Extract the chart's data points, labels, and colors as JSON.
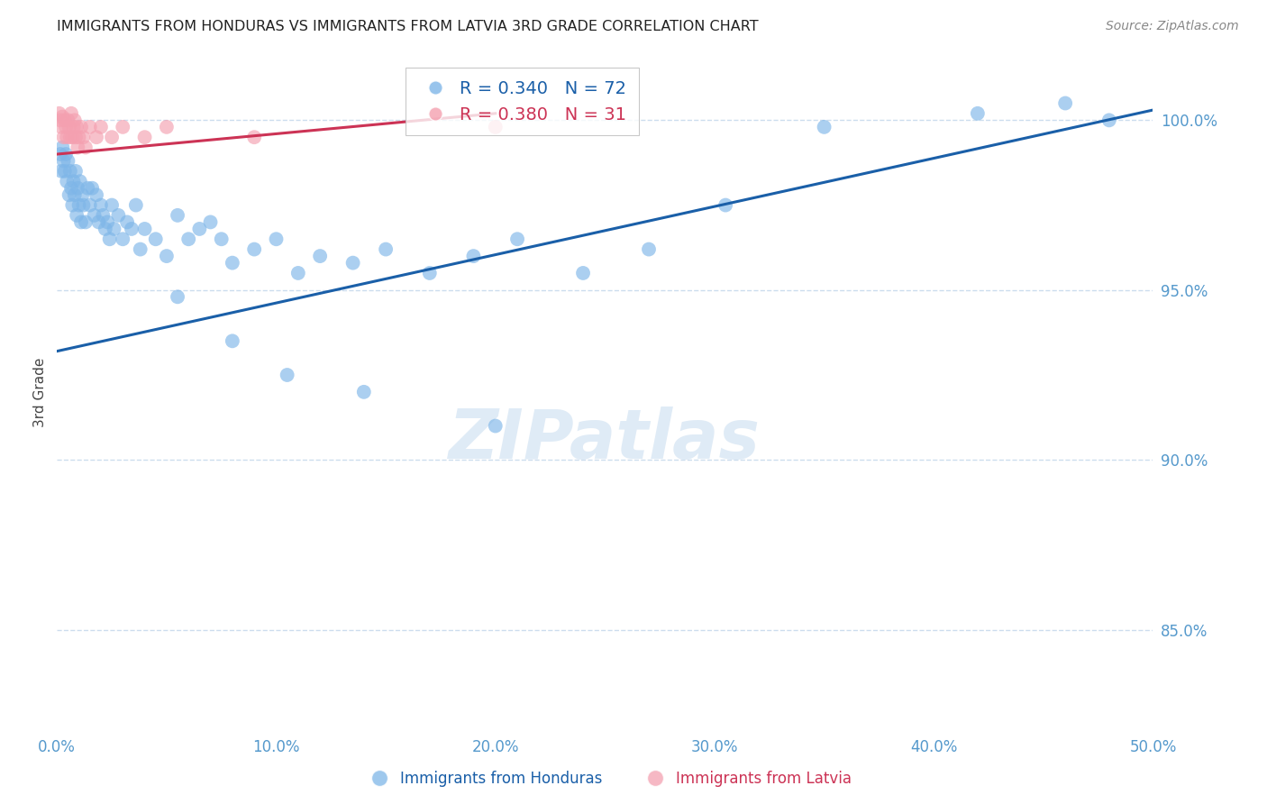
{
  "title": "IMMIGRANTS FROM HONDURAS VS IMMIGRANTS FROM LATVIA 3RD GRADE CORRELATION CHART",
  "source": "Source: ZipAtlas.com",
  "ylabel": "3rd Grade",
  "legend_label_blue": "Immigrants from Honduras",
  "legend_label_pink": "Immigrants from Latvia",
  "R_blue": 0.34,
  "N_blue": 72,
  "R_pink": 0.38,
  "N_pink": 31,
  "x_min": 0.0,
  "x_max": 50.0,
  "y_min": 82.0,
  "y_max": 102.0,
  "yticks": [
    85.0,
    90.0,
    95.0,
    100.0
  ],
  "xticks": [
    0.0,
    10.0,
    20.0,
    30.0,
    40.0,
    50.0
  ],
  "blue_color": "#7EB6E8",
  "pink_color": "#F4A0B0",
  "blue_line_color": "#1A5FA8",
  "pink_line_color": "#CC3355",
  "tick_color": "#5599CC",
  "grid_color": "#CCDDEE",
  "Honduras_x": [
    0.15,
    0.2,
    0.25,
    0.3,
    0.35,
    0.4,
    0.45,
    0.5,
    0.55,
    0.6,
    0.65,
    0.7,
    0.75,
    0.8,
    0.85,
    0.9,
    0.95,
    1.0,
    1.05,
    1.1,
    1.15,
    1.2,
    1.3,
    1.4,
    1.5,
    1.6,
    1.7,
    1.8,
    1.9,
    2.0,
    2.1,
    2.2,
    2.3,
    2.4,
    2.5,
    2.6,
    2.8,
    3.0,
    3.2,
    3.4,
    3.6,
    3.8,
    4.0,
    4.5,
    5.0,
    5.5,
    6.0,
    6.5,
    7.0,
    7.5,
    8.0,
    9.0,
    10.0,
    11.0,
    12.0,
    13.5,
    15.0,
    17.0,
    19.0,
    21.0,
    24.0,
    27.0,
    30.5,
    35.0,
    42.0,
    46.0,
    48.0,
    5.5,
    8.0,
    10.5,
    14.0,
    20.0
  ],
  "Honduras_y": [
    99.0,
    98.5,
    99.2,
    98.8,
    98.5,
    99.0,
    98.2,
    98.8,
    97.8,
    98.5,
    98.0,
    97.5,
    98.2,
    97.8,
    98.5,
    97.2,
    98.0,
    97.5,
    98.2,
    97.0,
    97.8,
    97.5,
    97.0,
    98.0,
    97.5,
    98.0,
    97.2,
    97.8,
    97.0,
    97.5,
    97.2,
    96.8,
    97.0,
    96.5,
    97.5,
    96.8,
    97.2,
    96.5,
    97.0,
    96.8,
    97.5,
    96.2,
    96.8,
    96.5,
    96.0,
    97.2,
    96.5,
    96.8,
    97.0,
    96.5,
    95.8,
    96.2,
    96.5,
    95.5,
    96.0,
    95.8,
    96.2,
    95.5,
    96.0,
    96.5,
    95.5,
    96.2,
    97.5,
    99.8,
    100.2,
    100.5,
    100.0,
    94.8,
    93.5,
    92.5,
    92.0,
    91.0
  ],
  "Latvia_x": [
    0.1,
    0.15,
    0.2,
    0.25,
    0.3,
    0.35,
    0.4,
    0.45,
    0.5,
    0.55,
    0.6,
    0.65,
    0.7,
    0.75,
    0.8,
    0.85,
    0.9,
    0.95,
    1.0,
    1.1,
    1.2,
    1.3,
    1.5,
    1.8,
    2.0,
    2.5,
    3.0,
    4.0,
    5.0,
    9.0,
    20.0
  ],
  "Latvia_y": [
    100.2,
    100.0,
    99.8,
    100.1,
    99.5,
    100.0,
    99.8,
    99.5,
    100.0,
    99.8,
    99.5,
    100.2,
    99.5,
    99.8,
    100.0,
    99.5,
    99.8,
    99.2,
    99.5,
    99.8,
    99.5,
    99.2,
    99.8,
    99.5,
    99.8,
    99.5,
    99.8,
    99.5,
    99.8,
    99.5,
    99.8
  ],
  "blue_trendline_x": [
    0.0,
    50.0
  ],
  "blue_trendline_y": [
    93.2,
    100.3
  ],
  "pink_trendline_x": [
    0.0,
    20.0
  ],
  "pink_trendline_y": [
    99.0,
    100.2
  ]
}
